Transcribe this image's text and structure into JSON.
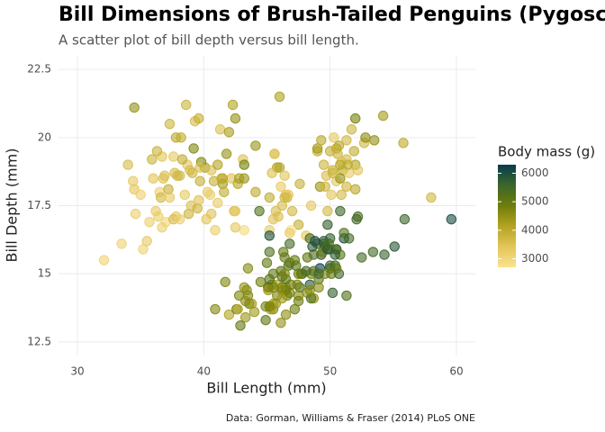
{
  "chart_data": {
    "type": "scatter",
    "title": "Bill Dimensions of Brush-Tailed Penguins (Pygosceli",
    "subtitle": "A scatter plot of bill depth versus bill length.",
    "xlabel": "Bill Length (mm)",
    "ylabel": "Bill Depth (mm)",
    "caption": "Data: Gorman, Williams & Fraser (2014) PLoS ONE",
    "color_title": "Body mass (g)",
    "clim": [
      2700,
      6300
    ],
    "cticks": [
      3000,
      4000,
      5000,
      6000
    ],
    "colors": [
      "#fae38f",
      "#e3c55a",
      "#b4a421",
      "#6f7d0a",
      "#3c6629",
      "#083c4e"
    ],
    "xlim": [
      28.5,
      61.5
    ],
    "xticks": [
      30,
      40,
      50,
      60
    ],
    "ylim": [
      12.0,
      23.0
    ],
    "yticks": [
      12.5,
      15.0,
      17.5,
      20.0,
      22.5
    ],
    "grid": true,
    "x": [
      32.1,
      33.5,
      34.5,
      34,
      34.5,
      34.6,
      35,
      35.2,
      35.5,
      35.9,
      36,
      36.2,
      36.4,
      36.5,
      36.6,
      36.7,
      36.8,
      37,
      37.2,
      37.3,
      37.6,
      37.7,
      37.8,
      37.8,
      37.9,
      38.1,
      38.2,
      38.5,
      38.6,
      38.7,
      38.8,
      38.9,
      39,
      39.1,
      39.2,
      39.3,
      39.5,
      39.6,
      39.7,
      39.8,
      40.1,
      40.2,
      40.3,
      40.6,
      40.8,
      41.1,
      41.1,
      41.3,
      41.4,
      41.5,
      41.6,
      41.8,
      42,
      42.2,
      42.3,
      42.5,
      42.7,
      42.8,
      43.1,
      43.2,
      44.1,
      45.8,
      46,
      39.6,
      37.6,
      35.7,
      34.4,
      36.9,
      38.3,
      39.7,
      40.5,
      37.3,
      36.3,
      38.1,
      40.6,
      44.1,
      41.5,
      36.7,
      43.2,
      46.5,
      50,
      51.3,
      45.4,
      52.7,
      45.2,
      46.1,
      51.3,
      46,
      51.3,
      46.6,
      51.7,
      47,
      52,
      45.9,
      50.5,
      50.3,
      58,
      46.4,
      49.2,
      42.4,
      48.5,
      43.2,
      50.6,
      46.7,
      52,
      50.5,
      49.5,
      46.4,
      52.8,
      40.9,
      54.2,
      42.5,
      51,
      49.7,
      47.5,
      47.6,
      52,
      46.9,
      53.5,
      49,
      46.2,
      50.9,
      45.5,
      50.9,
      50.8,
      50.1,
      49,
      51.5,
      49.8,
      48.1,
      51.4,
      45.7,
      50.7,
      42.5,
      52.2,
      45.6,
      49.3,
      50.2,
      45.6,
      51.9,
      46.8,
      45.2,
      49.6,
      50.8,
      50.2,
      55.8,
      46.1,
      50,
      48.7,
      50,
      47.6,
      46.5,
      45.4,
      46.7,
      43.3,
      46.8,
      40.9,
      49,
      45.5,
      48.4,
      45.8,
      49.3,
      42,
      49.2,
      46.2,
      48.7,
      50.2,
      45.1,
      46.5,
      46.3,
      42.9,
      46.1,
      47.8,
      48.2,
      50,
      47.3,
      42.8,
      45.1,
      59.6,
      49.1,
      48.4,
      42.6,
      44.4,
      44,
      48.7,
      42.7,
      49.6,
      45.3,
      49.6,
      50.5,
      43.6,
      45.5,
      50.5,
      44.9,
      45.2,
      46.6,
      48.5,
      45.1,
      50.1,
      46.5,
      45,
      43.8,
      45.5,
      43.2,
      50.4,
      45.3,
      46.2,
      45.7,
      54.3,
      45.8,
      49.8,
      46.2,
      49.5,
      43.5,
      50.7,
      47.7,
      46.4,
      48.2,
      46.5,
      46.4,
      48.6,
      47.5,
      51.1,
      45.2,
      45.2,
      49.1,
      52.5,
      47.4,
      50,
      44.9,
      50.8,
      43.4,
      51.3,
      47.5,
      52.1,
      47.5,
      52.2,
      45.5,
      49.5,
      44.5,
      50.8,
      49.4,
      46.9,
      48.4,
      51.1,
      48.5,
      55.9,
      47.2,
      49.1,
      46.8,
      41.7,
      53.4,
      43.3,
      48.1,
      50.5,
      49.8,
      43.5,
      51.5,
      46.2,
      55.1,
      48.8,
      47.2,
      46.8,
      50.4,
      45.2,
      49.9
    ],
    "values": [
      15.5,
      16.1,
      21.1,
      19.0,
      18.1,
      17.2,
      17.9,
      15.9,
      16.2,
      19.2,
      18.5,
      17.3,
      17.1,
      18.0,
      17.8,
      19.3,
      18.5,
      16.9,
      18.1,
      17.8,
      19.3,
      18.7,
      20.0,
      17.1,
      18.6,
      18.6,
      20.0,
      17.9,
      21.2,
      19.0,
      17.2,
      18.8,
      17.5,
      18.7,
      19.6,
      20.6,
      17.4,
      17.7,
      18.4,
      19.1,
      18.9,
      17.0,
      18.0,
      18.8,
      18.4,
      17.6,
      19.0,
      20.3,
      18.5,
      18.3,
      18.0,
      19.4,
      20.2,
      18.5,
      21.2,
      20.7,
      18.3,
      18.5,
      19.2,
      18.5,
      19.7,
      18.9,
      21.5,
      20.7,
      17.0,
      16.9,
      18.4,
      18.6,
      19.2,
      18.9,
      17.9,
      20.5,
      19.5,
      17.0,
      17.2,
      18.0,
      18.5,
      16.7,
      19.0,
      17.9,
      19.5,
      19.2,
      18.7,
      19.8,
      17.8,
      18.2,
      18.2,
      18.9,
      19.9,
      17.8,
      20.3,
      17.3,
      18.1,
      17.1,
      19.6,
      20.0,
      17.8,
      18.6,
      18.2,
      17.3,
      17.5,
      16.6,
      19.4,
      17.9,
      19.0,
      18.4,
      19.0,
      17.8,
      20.0,
      16.6,
      20.8,
      16.7,
      18.8,
      18.6,
      16.8,
      18.3,
      20.7,
      16.6,
      19.9,
      19.5,
      17.5,
      19.1,
      17.0,
      17.9,
      18.5,
      17.9,
      19.6,
      18.7,
      17.3,
      16.4,
      19.0,
      17.3,
      19.7,
      17.3,
      18.8,
      19.4,
      19.9,
      18.8,
      19.4,
      19.5,
      16.5,
      16.6,
      18.2,
      19.0,
      18.7,
      19.8,
      13.2,
      16.3,
      14.1,
      15.2,
      14.5,
      13.5,
      14.6,
      15.3,
      13.4,
      15.4,
      13.7,
      16.1,
      13.7,
      14.6,
      14.6,
      15.7,
      13.5,
      15.2,
      14.5,
      15.1,
      14.3,
      14.5,
      14.5,
      15.8,
      13.1,
      15.1,
      15.0,
      14.3,
      15.3,
      15.3,
      14.2,
      14.5,
      17.0,
      14.8,
      16.3,
      13.7,
      17.3,
      13.6,
      15.7,
      13.7,
      16.0,
      13.7,
      15.0,
      15.9,
      13.9,
      13.9,
      15.9,
      13.3,
      15.8,
      14.2,
      14.1,
      14.4,
      15.0,
      14.4,
      15.4,
      13.9,
      15.0,
      14.5,
      15.3,
      13.8,
      14.9,
      13.9,
      15.7,
      14.2,
      16.8,
      14.4,
      16.2,
      14.2,
      15.0,
      15.0,
      15.6,
      15.6,
      14.8,
      15.0,
      16.0,
      14.2,
      16.3,
      13.8,
      16.4,
      14.5,
      15.6,
      14.6,
      15.9,
      13.8,
      17.3,
      14.4,
      14.2,
      14.0,
      17.0,
      15.0,
      17.1,
      14.5,
      16.1,
      14.7,
      15.7,
      15.8,
      14.6,
      14.4,
      16.5,
      15.0,
      17.0,
      15.5,
      15.0,
      16.1,
      14.7,
      15.8,
      14.0,
      15.1,
      15.2,
      15.9,
      15.2,
      16.3,
      14.1,
      16.0,
      16.2,
      13.7,
      14.3,
      15.7,
      14.8,
      16.1
    ],
    "body_mass": [
      3050,
      3100,
      4500,
      3600,
      3400,
      3200,
      3150,
      3050,
      3300,
      3800,
      3450,
      3300,
      3200,
      3150,
      3700,
      3450,
      3500,
      3000,
      3900,
      3350,
      3300,
      3600,
      4000,
      3300,
      3700,
      3700,
      3950,
      3325,
      3800,
      3450,
      3800,
      3600,
      3550,
      3750,
      4675,
      3650,
      3800,
      3500,
      3900,
      4650,
      4300,
      3450,
      3250,
      3550,
      3900,
      3275,
      4125,
      3550,
      3875,
      4300,
      3950,
      4450,
      4250,
      3475,
      4150,
      4500,
      4075,
      4250,
      3500,
      4400,
      4400,
      4200,
      4200,
      3900,
      3600,
      3150,
      3325,
      3500,
      3950,
      3550,
      3200,
      3775,
      3800,
      3175,
      3475,
      4000,
      4000,
      3150,
      4775,
      3500,
      3900,
      3650,
      3525,
      3725,
      3950,
      3250,
      3750,
      4150,
      3700,
      3800,
      3775,
      3700,
      4050,
      3575,
      4050,
      3300,
      3700,
      3450,
      4400,
      3600,
      3400,
      2900,
      3800,
      3300,
      4150,
      3400,
      3800,
      3700,
      4550,
      3200,
      4300,
      3350,
      4100,
      3600,
      3900,
      3850,
      4800,
      2700,
      4500,
      3950,
      3650,
      3550,
      3500,
      3675,
      4450,
      3400,
      4300,
      3250,
      3675,
      3325,
      3950,
      3600,
      4050,
      3350,
      3450,
      3250,
      4050,
      3800,
      3525,
      3950,
      3250,
      3250,
      3775,
      4100,
      3775,
      4000,
      4500,
      5700,
      4450,
      5700,
      5400,
      4550,
      4800,
      5200,
      4400,
      5150,
      4650,
      5550,
      4650,
      5850,
      4200,
      5850,
      4150,
      6300,
      4800,
      5350,
      5700,
      5000,
      4400,
      5050,
      5000,
      5100,
      5650,
      4600,
      5550,
      5250,
      4700,
      5050,
      6050,
      5150,
      5400,
      4950,
      5250,
      4350,
      5350,
      3950,
      5700,
      4300,
      4750,
      5550,
      4900,
      4200,
      5400,
      5100,
      5300,
      4850,
      5300,
      4400,
      5000,
      4900,
      5050,
      4300,
      5000,
      4450,
      5550,
      4200,
      5300,
      4400,
      5650,
      4700,
      5700,
      4650,
      5800,
      4700,
      5550,
      4750,
      5000,
      5100,
      5200,
      4700,
      5800,
      4600,
      6000,
      4750,
      5950,
      4625,
      5450,
      4725,
      5350,
      4750,
      5600,
      4600,
      5300,
      4875,
      5550,
      4950,
      5400,
      4750,
      5650,
      4850,
      5200,
      4925,
      4875,
      4625,
      5250,
      4850,
      5600,
      4975,
      5500,
      5500,
      4700,
      5500,
      4575,
      5500,
      5000,
      5950,
      4650,
      5500,
      4375,
      5850,
      6000,
      4925,
      4850,
      5750,
      5200,
      5400
    ]
  }
}
